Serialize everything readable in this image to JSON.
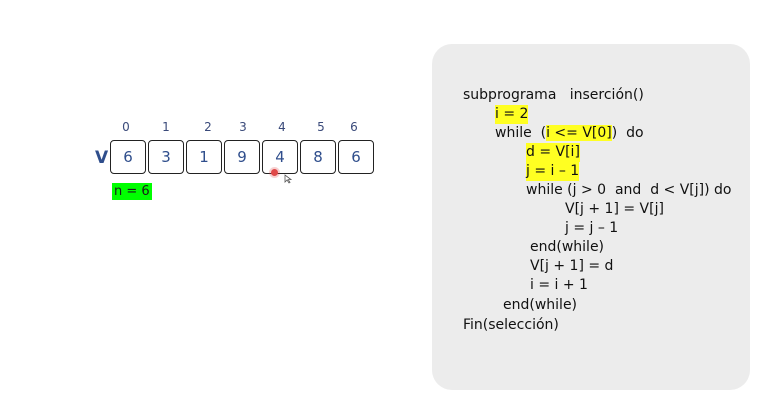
{
  "array": {
    "label": "V",
    "indices": [
      "0",
      "1",
      "2",
      "3",
      "4",
      "5",
      "6"
    ],
    "values": [
      "6",
      "3",
      "1",
      "9",
      "4",
      "8",
      "6"
    ],
    "n_label": "n = 6"
  },
  "code": {
    "lines": [
      {
        "text": "subprograma   inserción()",
        "highlight": false
      },
      {
        "text": "i = 2",
        "highlight": true
      },
      {
        "text": "while  (i <= V[0])  do",
        "highlight": false,
        "partial": "i <= V[0]"
      },
      {
        "text": "d = V[i]",
        "highlight": true
      },
      {
        "text": "j = i – 1",
        "highlight": true
      },
      {
        "text": "while (j > 0  and  d < V[j]) do",
        "highlight": false
      },
      {
        "text": "V[j + 1] = V[j]",
        "highlight": false
      },
      {
        "text": "j = j – 1",
        "highlight": false
      },
      {
        "text": "end(while)",
        "highlight": false
      },
      {
        "text": "V[j + 1] = d",
        "highlight": false
      },
      {
        "text": "i = i + 1",
        "highlight": false
      },
      {
        "text": "end(while)",
        "highlight": false
      },
      {
        "text": "Fin(selección)",
        "highlight": false
      }
    ],
    "while_outer_prefix": "while  (",
    "while_outer_highlight": "i <= V[0]",
    "while_outer_suffix": ")  do"
  },
  "colors": {
    "highlight": "#ffff22",
    "n_badge": "#00ff00",
    "panel": "#ececec",
    "array_text": "#2f4e8c"
  }
}
